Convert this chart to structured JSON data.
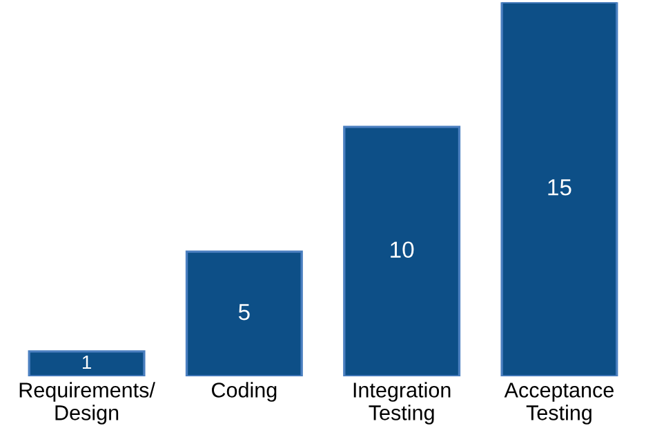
{
  "chart_data": {
    "type": "bar",
    "categories": [
      "Requirements/\nDesign",
      "Coding",
      "Integration\nTesting",
      "Acceptance\nTesting"
    ],
    "values": [
      1,
      5,
      10,
      15
    ],
    "color": "#0d4f87",
    "data_labels": true,
    "grid": false,
    "legend": false
  }
}
